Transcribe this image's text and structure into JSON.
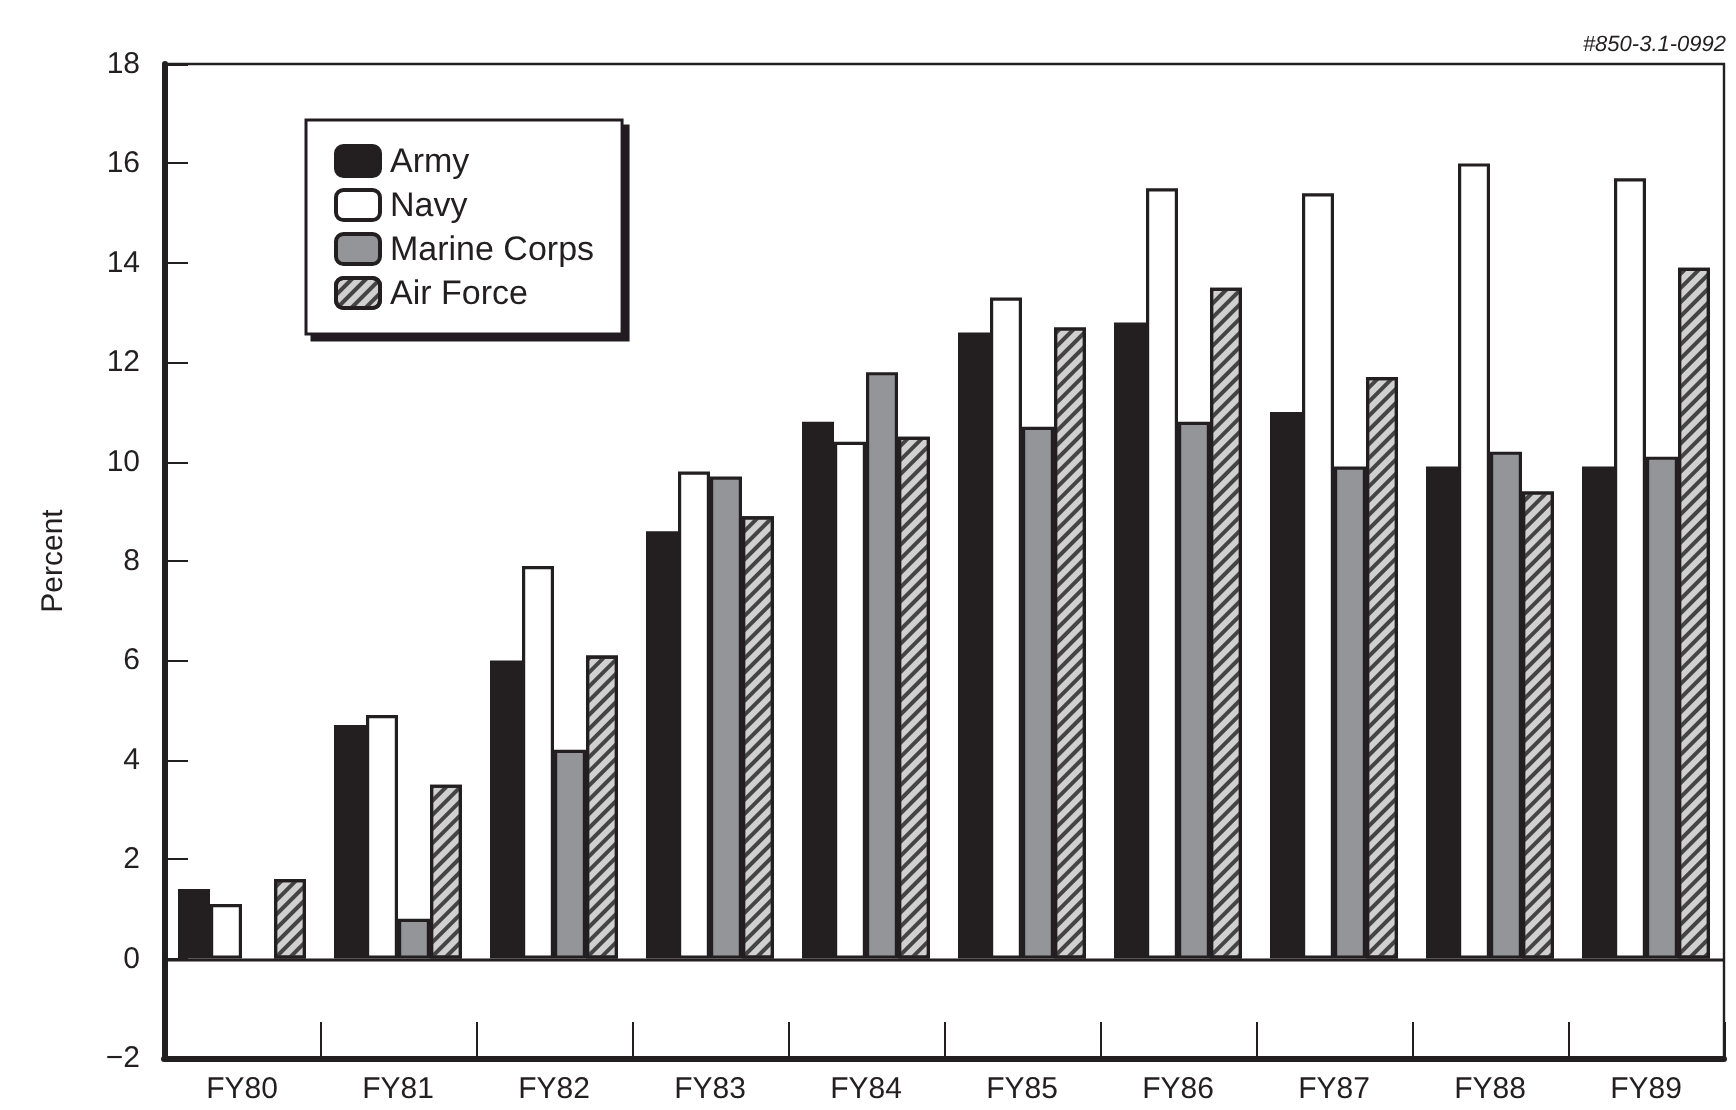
{
  "chart_data": {
    "type": "bar",
    "ylabel": "Percent",
    "categories": [
      "FY80",
      "FY81",
      "FY82",
      "FY83",
      "FY84",
      "FY85",
      "FY86",
      "FY87",
      "FY88",
      "FY89"
    ],
    "series": [
      {
        "name": "Army",
        "color": "#231f20",
        "values": [
          1.4,
          4.7,
          6.0,
          8.6,
          10.8,
          12.6,
          12.8,
          11.0,
          9.9,
          9.9
        ]
      },
      {
        "name": "Navy",
        "color": "#ffffff",
        "values": [
          1.1,
          4.9,
          7.9,
          9.8,
          10.4,
          13.3,
          15.5,
          15.4,
          16.0,
          15.7
        ]
      },
      {
        "name": "Marine Corps",
        "color": "#939598",
        "values": [
          null,
          0.8,
          4.2,
          9.7,
          11.8,
          10.7,
          10.8,
          9.9,
          10.2,
          10.1
        ]
      },
      {
        "name": "Air Force",
        "color": "#d0d0d0",
        "values": [
          1.6,
          3.5,
          6.1,
          8.9,
          10.5,
          12.7,
          13.5,
          11.7,
          9.4,
          13.9
        ]
      }
    ],
    "ylim": [
      -2,
      18
    ],
    "yticks": [
      -2,
      0,
      2,
      4,
      6,
      8,
      10,
      12,
      14,
      16,
      18
    ],
    "ref_lines": [
      {
        "axis": "y",
        "value": 0,
        "color": "#231f20"
      }
    ],
    "annotations": [
      "#850-3.1-0992"
    ],
    "grid": false,
    "legend": "top left"
  }
}
